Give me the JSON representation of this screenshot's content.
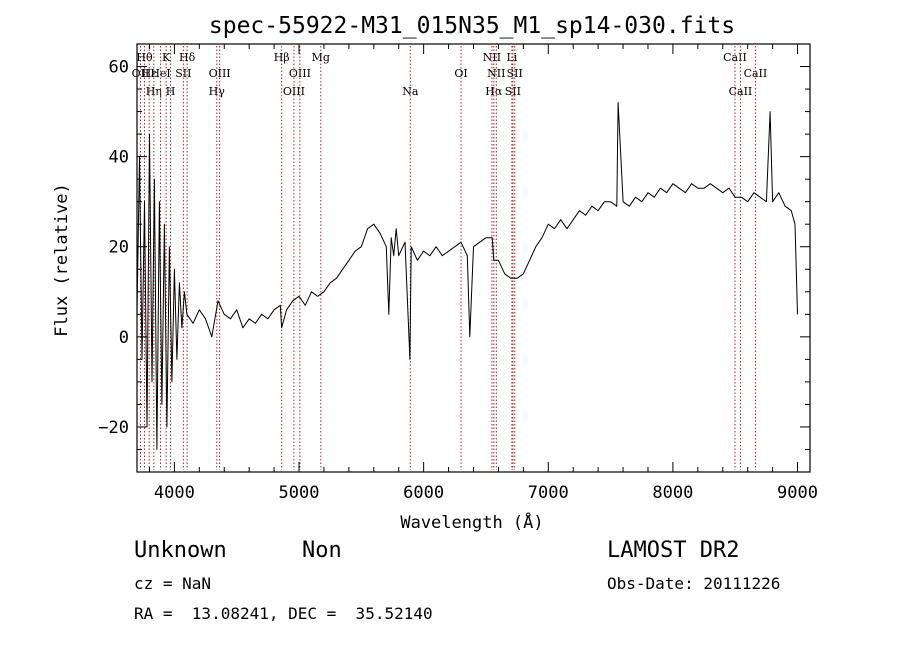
{
  "chart_data": {
    "type": "line",
    "title": "spec-55922-M31_015N35_M1_sp14-030.fits",
    "xlabel": "Wavelength (Å)",
    "ylabel": "Flux (relative)",
    "xlim": [
      3700,
      9100
    ],
    "ylim": [
      -30,
      65
    ],
    "x_ticks": [
      "4000",
      "5000",
      "6000",
      "7000",
      "8000",
      "9000"
    ],
    "y_ticks": [
      "−20",
      "0",
      "20",
      "40",
      "60"
    ],
    "series": [
      {
        "x": [
          3700,
          3720,
          3740,
          3760,
          3780,
          3800,
          3820,
          3840,
          3860,
          3880,
          3900,
          3920,
          3940,
          3960,
          3980,
          4000,
          4020,
          4040,
          4060,
          4080,
          4100,
          4150,
          4200,
          4250,
          4300,
          4350,
          4400,
          4450,
          4500,
          4550,
          4600,
          4650,
          4700,
          4750,
          4800,
          4850,
          4860,
          4900,
          4950,
          5000,
          5050,
          5100,
          5150,
          5200,
          5250,
          5300,
          5350,
          5400,
          5450,
          5500,
          5550,
          5600,
          5650,
          5700,
          5720,
          5740,
          5760,
          5780,
          5800,
          5850,
          5890,
          5900,
          5950,
          6000,
          6050,
          6100,
          6150,
          6200,
          6250,
          6300,
          6350,
          6370,
          6400,
          6450,
          6500,
          6550,
          6563,
          6600,
          6650,
          6700,
          6750,
          6800,
          6850,
          6900,
          6950,
          7000,
          7050,
          7100,
          7150,
          7200,
          7250,
          7300,
          7350,
          7400,
          7450,
          7500,
          7550,
          7560,
          7600,
          7650,
          7700,
          7750,
          7800,
          7850,
          7900,
          7950,
          8000,
          8050,
          8100,
          8150,
          8200,
          8250,
          8300,
          8350,
          8400,
          8450,
          8500,
          8550,
          8600,
          8650,
          8700,
          8750,
          8780,
          8800,
          8850,
          8900,
          8950,
          8980,
          9000
        ],
        "y": [
          5,
          40,
          -5,
          30,
          -20,
          45,
          -10,
          35,
          -25,
          30,
          -15,
          25,
          -20,
          20,
          -10,
          15,
          -5,
          12,
          2,
          10,
          5,
          3,
          6,
          4,
          0,
          8,
          5,
          4,
          6,
          2,
          4,
          3,
          5,
          4,
          6,
          7,
          2,
          6,
          8,
          9,
          7,
          10,
          9,
          10,
          12,
          13,
          15,
          17,
          19,
          20,
          24,
          25,
          23,
          20,
          5,
          22,
          18,
          24,
          18,
          21,
          -5,
          20,
          17,
          19,
          18,
          20,
          18,
          19,
          20,
          21,
          18,
          0,
          20,
          21,
          22,
          22,
          17,
          17,
          14,
          13,
          13,
          14,
          17,
          20,
          22,
          25,
          24,
          26,
          24,
          26,
          28,
          27,
          29,
          28,
          30,
          30,
          29,
          52,
          30,
          29,
          31,
          30,
          32,
          31,
          33,
          32,
          34,
          33,
          32,
          34,
          33,
          33,
          34,
          33,
          32,
          33,
          31,
          31,
          30,
          32,
          31,
          30,
          50,
          30,
          32,
          29,
          28,
          25,
          5
        ]
      }
    ],
    "line_markers": [
      {
        "wave": 3728,
        "label": "OII",
        "row": 2
      },
      {
        "wave": 3760,
        "label": "Hθ",
        "row": 1
      },
      {
        "wave": 3798,
        "label": "Hε",
        "row": 2
      },
      {
        "wave": 3835,
        "label": "Hη",
        "row": 3
      },
      {
        "wave": 3889,
        "label": "HeI",
        "row": 2
      },
      {
        "wave": 3934,
        "label": "K",
        "row": 1
      },
      {
        "wave": 3969,
        "label": "H",
        "row": 3
      },
      {
        "wave": 4072,
        "label": "SII",
        "row": 2
      },
      {
        "wave": 4102,
        "label": "Hδ",
        "row": 1
      },
      {
        "wave": 4340,
        "label": "Hγ",
        "row": 3
      },
      {
        "wave": 4363,
        "label": "OIII",
        "row": 2
      },
      {
        "wave": 4861,
        "label": "Hβ",
        "row": 1
      },
      {
        "wave": 4959,
        "label": "OIII",
        "row": 3
      },
      {
        "wave": 5007,
        "label": "OIII",
        "row": 2
      },
      {
        "wave": 5175,
        "label": "Mg",
        "row": 1
      },
      {
        "wave": 5893,
        "label": "Na",
        "row": 3
      },
      {
        "wave": 6300,
        "label": "OI",
        "row": 2
      },
      {
        "wave": 6548,
        "label": "NII",
        "row": 1
      },
      {
        "wave": 6563,
        "label": "Hα",
        "row": 3
      },
      {
        "wave": 6583,
        "label": "NII",
        "row": 2
      },
      {
        "wave": 6708,
        "label": "Li",
        "row": 1
      },
      {
        "wave": 6716,
        "label": "SII",
        "row": 3
      },
      {
        "wave": 6731,
        "label": "SII",
        "row": 2
      },
      {
        "wave": 8498,
        "label": "CaII",
        "row": 1
      },
      {
        "wave": 8542,
        "label": "CaII",
        "row": 3
      },
      {
        "wave": 8662,
        "label": "CaII",
        "row": 2
      }
    ]
  },
  "info": {
    "object_class": "Unknown",
    "object_subclass": "Non",
    "survey": "LAMOST DR2",
    "cz": "cz = NaN",
    "obs_date": "Obs-Date: 20111226",
    "coords": "RA =  13.08241, DEC =  35.52140"
  }
}
